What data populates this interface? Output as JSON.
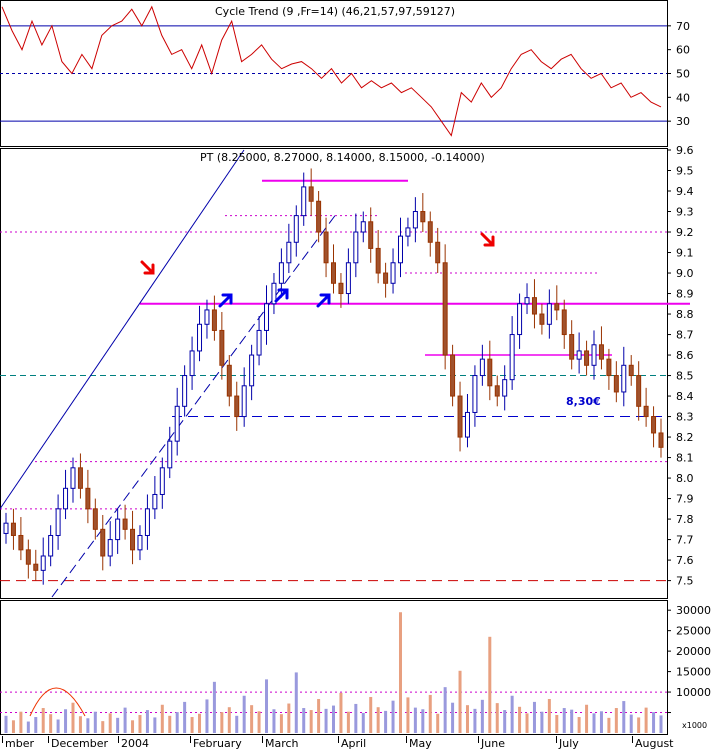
{
  "chart_data": [
    {
      "panel": "indicator",
      "type": "line",
      "title": "Cycle Trend (9 ,Fr=14) (46,21,57,97,59127)",
      "ylim": [
        20,
        80
      ],
      "y_ticks": [
        30,
        40,
        50,
        60,
        70
      ],
      "reference_levels": [
        30,
        50,
        70
      ],
      "series": [
        {
          "color": "#cc0000",
          "x": [
            0,
            10,
            20,
            30,
            40,
            50,
            60,
            70,
            80,
            90,
            100,
            110,
            120,
            130,
            140,
            150,
            160,
            170,
            180,
            190,
            200,
            210,
            220,
            230,
            240,
            250,
            260,
            270,
            280,
            290,
            300,
            310,
            320,
            330,
            340,
            350,
            360,
            370,
            380,
            390,
            400,
            410,
            420,
            430,
            440,
            450,
            460,
            470,
            480,
            490,
            500,
            510,
            520,
            530,
            540,
            550,
            560,
            570,
            580,
            590,
            600,
            610,
            620,
            630,
            640,
            650,
            660
          ],
          "values": [
            78,
            68,
            60,
            72,
            62,
            70,
            55,
            50,
            58,
            52,
            66,
            70,
            72,
            77,
            70,
            78,
            66,
            58,
            60,
            52,
            62,
            50,
            64,
            72,
            55,
            58,
            62,
            56,
            52,
            54,
            55,
            52,
            48,
            52,
            46,
            50,
            44,
            47,
            44,
            46,
            42,
            44,
            40,
            36,
            30,
            24,
            42,
            38,
            46,
            40,
            44,
            52,
            58,
            60,
            55,
            52,
            56,
            58,
            52,
            48,
            50,
            44,
            46,
            40,
            42,
            38,
            36
          ]
        }
      ]
    },
    {
      "panel": "price",
      "type": "candlestick",
      "title": "PT (8.25000, 8.27000, 8.14000, 8.15000, -0.14000)",
      "ylim": [
        7.42,
        9.6
      ],
      "y_ticks": [
        7.5,
        7.6,
        7.7,
        7.8,
        7.9,
        8.0,
        8.1,
        8.2,
        8.3,
        8.4,
        8.5,
        8.6,
        8.7,
        8.8,
        8.9,
        9.0,
        9.1,
        9.2,
        9.3,
        9.4,
        9.5,
        9.6
      ],
      "x_labels": [
        "mber",
        "December",
        "2004",
        "February",
        "March",
        "April",
        "May",
        "June",
        "July",
        "August"
      ],
      "close": [
        7.78,
        7.72,
        7.65,
        7.58,
        7.55,
        7.62,
        7.72,
        7.85,
        7.95,
        8.05,
        7.95,
        7.85,
        7.75,
        7.62,
        7.7,
        7.8,
        7.75,
        7.65,
        7.72,
        7.85,
        7.92,
        8.05,
        8.18,
        8.35,
        8.5,
        8.62,
        8.75,
        8.82,
        8.72,
        8.55,
        8.4,
        8.3,
        8.45,
        8.6,
        8.72,
        8.85,
        8.95,
        9.05,
        9.15,
        9.28,
        9.42,
        9.35,
        9.2,
        9.05,
        8.95,
        8.9,
        9.05,
        9.2,
        9.25,
        9.12,
        9.0,
        8.95,
        9.05,
        9.18,
        9.22,
        9.3,
        9.25,
        9.15,
        9.05,
        8.6,
        8.4,
        8.2,
        8.32,
        8.5,
        8.58,
        8.45,
        8.4,
        8.48,
        8.7,
        8.85,
        8.88,
        8.8,
        8.75,
        8.85,
        8.82,
        8.7,
        8.58,
        8.62,
        8.55,
        8.65,
        8.58,
        8.5,
        8.42,
        8.55,
        8.5,
        8.35,
        8.3,
        8.22,
        8.15
      ],
      "annotations": [
        {
          "text": "8,30€",
          "price": 8.3
        },
        {
          "price": 7.5,
          "kind": "support",
          "color": "#cc0000"
        },
        {
          "price": 8.3,
          "kind": "support",
          "color": "#0000cc"
        },
        {
          "price": 8.5,
          "kind": "level",
          "color": "#008080"
        },
        {
          "price": 8.85,
          "kind": "neckline",
          "color": "#ee00ee"
        },
        {
          "price": 9.45,
          "kind": "resistance",
          "color": "#ee00ee"
        },
        {
          "price": 8.6,
          "kind": "resistance",
          "color": "#ee00ee"
        }
      ]
    },
    {
      "panel": "volume",
      "type": "bar",
      "ylim": [
        0,
        32000
      ],
      "y_ticks": [
        5000,
        10000,
        15000,
        20000,
        25000,
        30000
      ],
      "unit_label": "x1000",
      "values": [
        4200,
        3100,
        5200,
        2800,
        3900,
        6100,
        4600,
        3300,
        5800,
        7400,
        4100,
        3600,
        5200,
        2900,
        4800,
        3700,
        6200,
        3100,
        4400,
        5600,
        3800,
        6900,
        4200,
        5100,
        7600,
        3900,
        4700,
        8200,
        12500,
        5100,
        6300,
        4200,
        9100,
        6800,
        5300,
        13100,
        5800,
        4600,
        7200,
        14800,
        6100,
        5600,
        8300,
        5900,
        6700,
        9800,
        5200,
        7100,
        4900,
        8800,
        6300,
        5400,
        7900,
        29500,
        8700,
        6200,
        5800,
        9300,
        4700,
        11200,
        7400,
        15200,
        6800,
        5900,
        8100,
        23500,
        7300,
        5600,
        9100,
        6400,
        4800,
        7600,
        5200,
        8300,
        4400,
        6100,
        5700,
        3900,
        6900,
        4800,
        5300,
        3700,
        6100,
        7800,
        4500,
        3800,
        6200,
        5100,
        4300
      ]
    }
  ]
}
